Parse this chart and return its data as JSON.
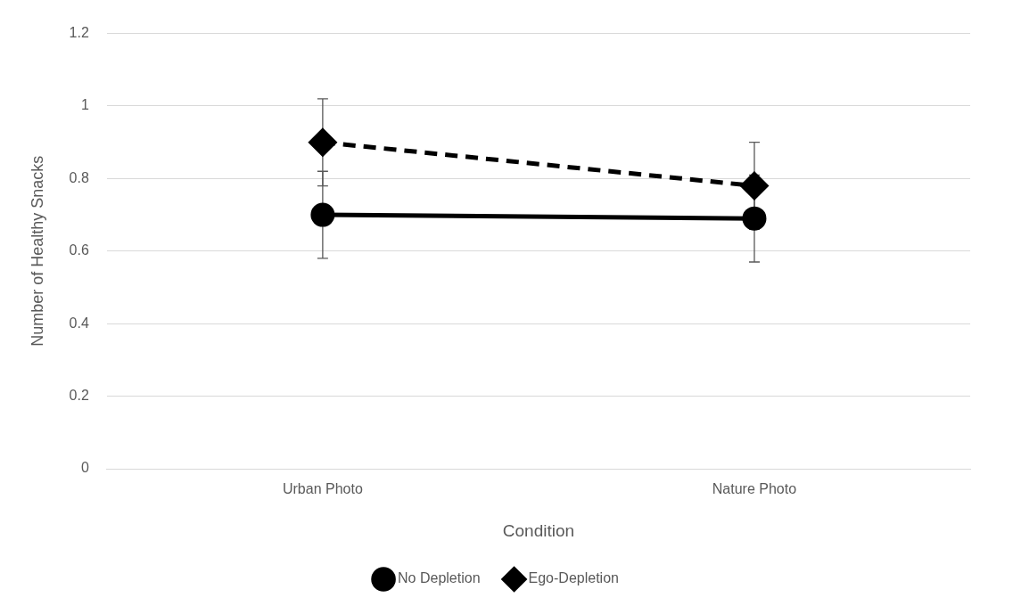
{
  "chart_data": {
    "type": "line",
    "categories": [
      "Urban Photo",
      "Nature Photo"
    ],
    "xlabel": "Condition",
    "ylabel": "Number of Healthy Snacks",
    "ylim": [
      0,
      1.2
    ],
    "yticks": [
      0,
      0.2,
      0.4,
      0.6,
      0.8,
      1,
      1.2
    ],
    "grid": "y",
    "legend": "bottom",
    "series": [
      {
        "name": "No Depletion",
        "color": "#000000",
        "values": [
          0.7,
          0.69
        ],
        "errors": [
          0.12,
          0.12
        ],
        "marker": "circle",
        "line_style": "solid"
      },
      {
        "name": "Ego-Depletion",
        "color": "#000000",
        "values": [
          0.9,
          0.78
        ],
        "errors": [
          0.12,
          0.12
        ],
        "marker": "diamond",
        "line_style": "dashed"
      }
    ]
  }
}
